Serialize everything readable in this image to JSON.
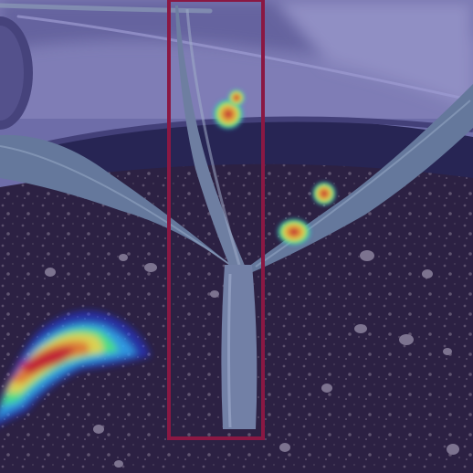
{
  "image": {
    "subject": "seedling-in-pot-with-attention-heatmap",
    "overlay_tint": "#3a3fb8",
    "box_color": "#8a1843",
    "heatmap_colors": [
      "#1e3cff",
      "#2fd3ff",
      "#4dff7a",
      "#fff23a",
      "#ff8a1e",
      "#e0201c"
    ]
  }
}
